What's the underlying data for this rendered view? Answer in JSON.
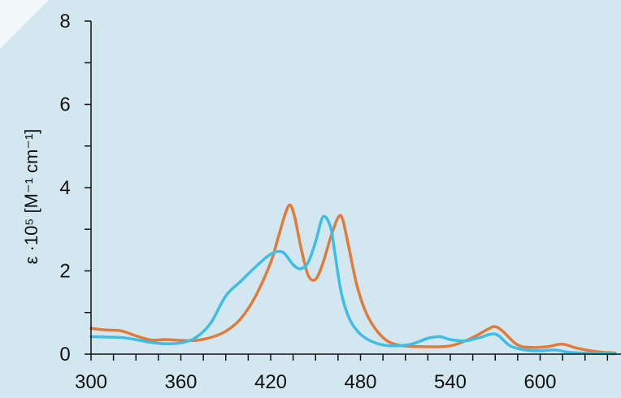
{
  "chart_data": {
    "type": "line",
    "title": "",
    "xlabel": "",
    "ylabel": "ε ·10⁵ [M⁻¹ cm⁻¹]",
    "xlim": [
      300,
      650
    ],
    "ylim": [
      0,
      8
    ],
    "x_ticks": [
      300,
      360,
      420,
      480,
      540,
      600
    ],
    "y_ticks": [
      0,
      2,
      4,
      6,
      8
    ],
    "grid": false,
    "colors": {
      "background": "#d3e7f0",
      "orange": "#e07b3c",
      "cyan": "#3fbde6",
      "axis": "#111111"
    },
    "series": [
      {
        "color": "#e07b3c",
        "x": [
          300,
          310,
          320,
          330,
          340,
          350,
          360,
          370,
          380,
          390,
          400,
          410,
          420,
          425,
          430,
          433,
          436,
          440,
          445,
          450,
          455,
          460,
          465,
          468,
          472,
          478,
          485,
          495,
          505,
          520,
          540,
          555,
          565,
          570,
          575,
          585,
          595,
          605,
          615,
          625,
          640,
          650
        ],
        "y": [
          0.62,
          0.58,
          0.56,
          0.44,
          0.34,
          0.35,
          0.33,
          0.33,
          0.4,
          0.55,
          0.85,
          1.4,
          2.2,
          2.8,
          3.4,
          3.58,
          3.3,
          2.6,
          1.9,
          1.8,
          2.2,
          2.8,
          3.28,
          3.25,
          2.6,
          1.6,
          0.9,
          0.4,
          0.22,
          0.18,
          0.2,
          0.4,
          0.6,
          0.66,
          0.55,
          0.22,
          0.16,
          0.18,
          0.24,
          0.14,
          0.05,
          0.03
        ]
      },
      {
        "color": "#3fbde6",
        "x": [
          300,
          310,
          320,
          330,
          340,
          350,
          360,
          370,
          380,
          390,
          400,
          410,
          420,
          428,
          435,
          440,
          445,
          450,
          455,
          460,
          463,
          467,
          472,
          478,
          485,
          495,
          505,
          515,
          525,
          533,
          540,
          550,
          560,
          567,
          572,
          580,
          590,
          600,
          610,
          620,
          635,
          650
        ],
        "y": [
          0.42,
          0.41,
          0.4,
          0.35,
          0.28,
          0.25,
          0.27,
          0.4,
          0.75,
          1.4,
          1.75,
          2.1,
          2.4,
          2.45,
          2.15,
          2.05,
          2.2,
          2.7,
          3.3,
          3.05,
          2.4,
          1.5,
          0.9,
          0.55,
          0.35,
          0.22,
          0.2,
          0.25,
          0.38,
          0.42,
          0.35,
          0.32,
          0.4,
          0.48,
          0.45,
          0.2,
          0.1,
          0.08,
          0.1,
          0.04,
          0.02,
          0.01
        ]
      }
    ]
  }
}
